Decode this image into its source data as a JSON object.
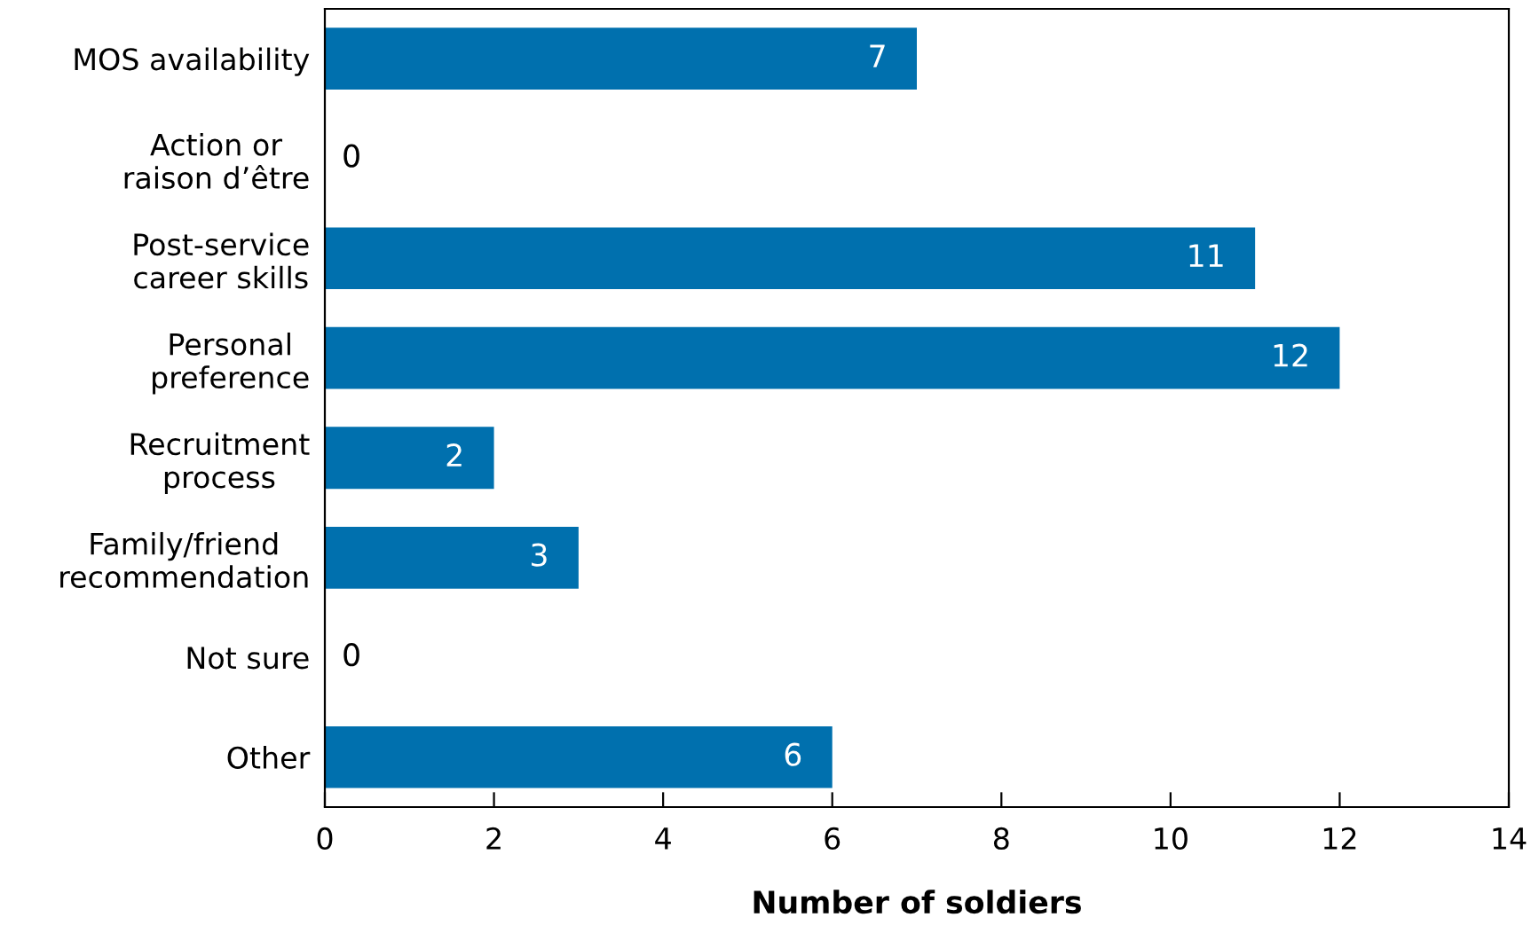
{
  "chart_data": {
    "type": "bar",
    "orientation": "horizontal",
    "xlabel": "Number of soldiers",
    "categories": [
      "MOS availability",
      "Action or\nraison d’être",
      "Post-service\ncareer skills",
      "Personal\npreference",
      "Recruitment\nprocess",
      "Family/friend\nrecommendation",
      "Not sure",
      "Other"
    ],
    "values": [
      7,
      0,
      11,
      12,
      2,
      3,
      0,
      6
    ],
    "color": "#0070ae",
    "xlim": [
      0,
      14
    ],
    "xticks": [
      0,
      2,
      4,
      6,
      8,
      10,
      12,
      14
    ],
    "data_labels": true,
    "grid": false
  }
}
